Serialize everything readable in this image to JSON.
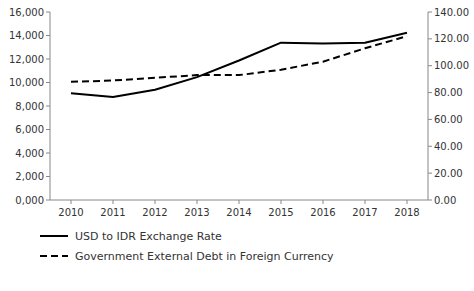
{
  "chart_data": {
    "type": "line",
    "x": [
      2010,
      2011,
      2012,
      2013,
      2014,
      2015,
      2016,
      2017,
      2018
    ],
    "xlim": [
      2009.5,
      2018.5
    ],
    "xticks": [
      2010,
      2011,
      2012,
      2013,
      2014,
      2015,
      2016,
      2017,
      2018
    ],
    "series": [
      {
        "name": "USD to IDR Exchange Rate",
        "color": "#000000",
        "line_style": "solid",
        "values": [
          9090,
          8770,
          9380,
          10460,
          11870,
          13390,
          13310,
          13380,
          14240
        ]
      },
      {
        "name": "Government External Debt in Foreign Currency",
        "color": "#000000",
        "line_style": "dashed",
        "axis": "y2",
        "values": [
          88,
          89,
          91,
          93,
          93,
          97,
          103,
          113,
          122
        ]
      }
    ],
    "ylim": [
      0,
      16000
    ],
    "yticks": [
      {
        "value": 0,
        "label": "0,000"
      },
      {
        "value": 2000,
        "label": "2,000"
      },
      {
        "value": 4000,
        "label": "4,000"
      },
      {
        "value": 6000,
        "label": "6,000"
      },
      {
        "value": 8000,
        "label": "8,000"
      },
      {
        "value": 10000,
        "label": "10,000"
      },
      {
        "value": 12000,
        "label": "12,000"
      },
      {
        "value": 14000,
        "label": "14,000"
      },
      {
        "value": 16000,
        "label": "16,000"
      }
    ],
    "y2lim": [
      0,
      140
    ],
    "y2ticks": [
      {
        "value": 0,
        "label": "0.00"
      },
      {
        "value": 20,
        "label": "20.00"
      },
      {
        "value": 40,
        "label": "40.00"
      },
      {
        "value": 60,
        "label": "60.00"
      },
      {
        "value": 80,
        "label": "80.00"
      },
      {
        "value": 100,
        "label": "100.00"
      },
      {
        "value": 120,
        "label": "120.00"
      },
      {
        "value": 140,
        "label": "140.00"
      }
    ],
    "grid": false,
    "legend": "lower left"
  }
}
